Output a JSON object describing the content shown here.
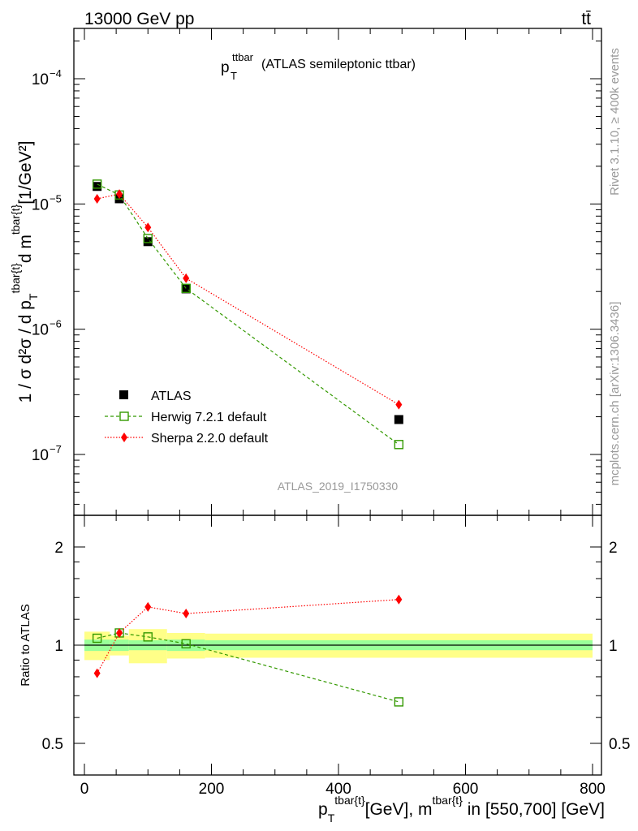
{
  "header": {
    "left": "13000 GeV pp",
    "right": "tt̄"
  },
  "side_text": {
    "rivet": "Rivet 3.1.10, ≥ 400k events",
    "mcplots": "mcplots.cern.ch [arXiv:1306.3436]"
  },
  "plot_title": {
    "main": "p",
    "sub": "T",
    "sup": "ttbar",
    "rest": " (ATLAS semileptonic ttbar)"
  },
  "analysis_id": "ATLAS_2019_I1750330",
  "colors": {
    "atlas": "#000000",
    "herwig": "#339900",
    "sherpa": "#ff0000",
    "band_inner": "#99ff99",
    "band_outer": "#ffff88"
  },
  "chart_data": [
    {
      "type": "line",
      "panel": "main",
      "title": "p_T^ttbar (ATLAS semileptonic ttbar)",
      "ylabel": "1 / σ d²σ / d p_T^{tbar{t}} d m^{tbar{t}} [1/GeV²]",
      "yscale": "log",
      "xlim": [
        -20,
        810
      ],
      "ylim": [
        3e-08,
        0.00027
      ],
      "y_ticks": [
        {
          "value": 1e-07,
          "label": "10",
          "exp": "−7"
        },
        {
          "value": 1e-06,
          "label": "10",
          "exp": "−6"
        },
        {
          "value": 1e-05,
          "label": "10",
          "exp": "−5"
        },
        {
          "value": 0.0001,
          "label": "10",
          "exp": "−4"
        }
      ],
      "legend_position": "lower-left",
      "series": [
        {
          "name": "ATLAS",
          "style": "marker-square",
          "x": [
            20,
            55,
            100,
            160,
            495
          ],
          "y": [
            1.38e-05,
            1.1e-05,
            5e-06,
            2.1e-06,
            1.9e-07
          ]
        },
        {
          "name": "Herwig 7.2.1 default",
          "style": "dashed-open-square",
          "x": [
            20,
            55,
            100,
            160,
            495
          ],
          "y": [
            1.44e-05,
            1.18e-05,
            5.3e-06,
            2.12e-06,
            1.2e-07
          ]
        },
        {
          "name": "Sherpa 2.2.0 default",
          "style": "dotted-diamond",
          "x": [
            20,
            55,
            100,
            160,
            495
          ],
          "y": [
            1.1e-05,
            1.2e-05,
            6.5e-06,
            2.55e-06,
            2.5e-07
          ]
        }
      ]
    },
    {
      "type": "line",
      "panel": "ratio",
      "ylabel": "Ratio to ATLAS",
      "xlabel": "p_T^{tbar{t}}[GeV], m^{tbar{t}} in [550,700] [GeV]",
      "xlim": [
        -20,
        810
      ],
      "ylim": [
        0.4,
        2.4
      ],
      "x_ticks": [
        0,
        200,
        400,
        600,
        800
      ],
      "y_ticks": [
        0.5,
        1,
        2
      ],
      "uncertainty_bands": [
        {
          "x": [
            0,
            40,
            70,
            130,
            190,
            800
          ],
          "inner": [
            0.04,
            0.04,
            0.035,
            0.04,
            0.035
          ],
          "outer": [
            0.1,
            0.07,
            0.12,
            0.09,
            0.085
          ]
        }
      ],
      "series": [
        {
          "name": "Herwig 7.2.1 default",
          "x": [
            20,
            55,
            100,
            160,
            495
          ],
          "y": [
            1.05,
            1.09,
            1.06,
            1.01,
            0.67
          ]
        },
        {
          "name": "Sherpa 2.2.0 default",
          "x": [
            20,
            55,
            100,
            160,
            495
          ],
          "y": [
            0.82,
            1.09,
            1.31,
            1.25,
            1.38
          ]
        }
      ]
    }
  ],
  "axis_labels": {
    "main_y": "1 / σ d²σ / d p",
    "main_y_rest": "d m",
    "main_y_unit": "[1/GeV²]",
    "main_y_sup": "tbar{t}",
    "main_y_sub": "T",
    "ratio_y": "Ratio to ATLAS",
    "x_p": "p",
    "x_sub": "T",
    "x_sup": "tbar{t}",
    "x_mid": "[GeV], m",
    "x_sup2": "tbar{t}",
    "x_end": " in [550,700] [GeV]"
  },
  "legend": [
    {
      "label": "ATLAS"
    },
    {
      "label": "Herwig 7.2.1 default"
    },
    {
      "label": "Sherpa 2.2.0 default"
    }
  ]
}
